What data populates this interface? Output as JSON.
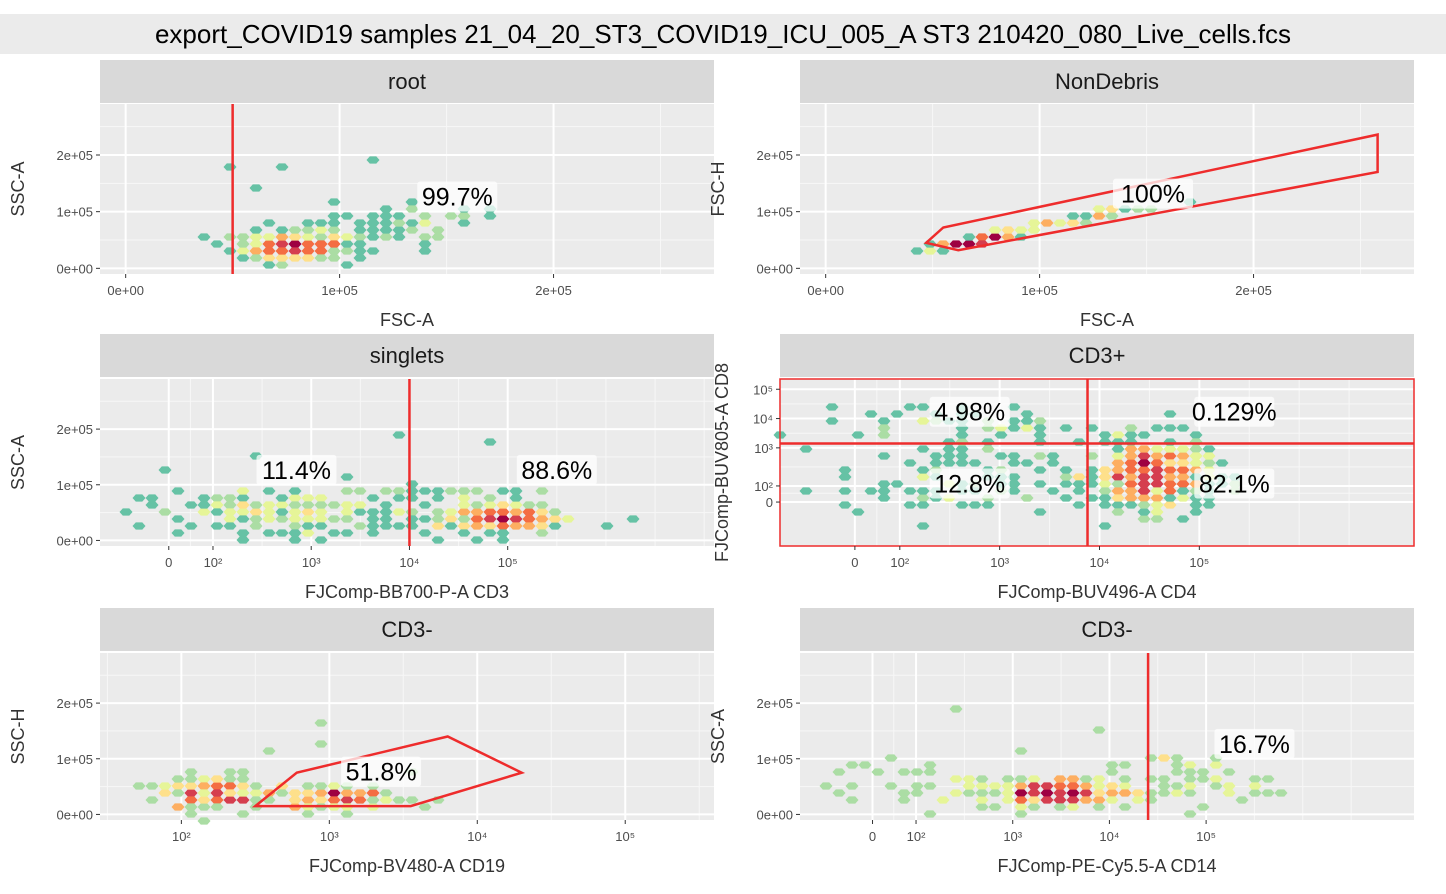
{
  "title": "export_COVID19 samples 21_04_20_ST3_COVID19_ICU_005_A ST3 210420_080_Live_cells.fcs",
  "colors": {
    "panel_bg": "#ebebeb",
    "strip_bg": "#d9d9d9",
    "grid": "#ffffff",
    "gate": "#ee2c2c",
    "palette": [
      "#5e4fa2",
      "#3288bd",
      "#66c2a5",
      "#abdda4",
      "#e6f598",
      "#fee08b",
      "#fdae61",
      "#f46d43",
      "#d53e4f",
      "#9e0142"
    ]
  },
  "chart_data": [
    {
      "type": "heatmap",
      "strip": "root",
      "xlabel": "FSC-A",
      "ylabel": "SSC-A",
      "x_ticks": [
        "0e+00",
        "1e+05",
        "2e+05"
      ],
      "y_ticks": [
        "0e+00",
        "1e+05",
        "2e+05"
      ],
      "gate": {
        "kind": "vertical",
        "x": 50000
      },
      "labels": [
        {
          "text": "99.7%",
          "x": 155000,
          "y": 125000
        }
      ],
      "density": [
        {
          "x": 78000,
          "y": 38000,
          "sx": 12000,
          "sy": 11000,
          "n": 320
        },
        {
          "x": 110000,
          "y": 60000,
          "sx": 30000,
          "sy": 18000,
          "n": 60
        },
        {
          "x": 140000,
          "y": 90000,
          "sx": 18000,
          "sy": 10000,
          "n": 22
        }
      ],
      "points": [
        [
          48000,
          175000
        ],
        [
          75000,
          185000
        ],
        [
          115000,
          195000
        ],
        [
          60000,
          140000
        ]
      ]
    },
    {
      "type": "heatmap",
      "strip": "NonDebris",
      "xlabel": "FSC-A",
      "ylabel": "FSC-H",
      "x_ticks": [
        "0e+00",
        "1e+05",
        "2e+05"
      ],
      "y_ticks": [
        "0e+00",
        "1e+05",
        "2e+05"
      ],
      "gate": {
        "kind": "polygon",
        "pts": [
          [
            47000,
            45000
          ],
          [
            55000,
            72000
          ],
          [
            258000,
            236000
          ],
          [
            258000,
            170000
          ],
          [
            62000,
            32000
          ]
        ]
      },
      "labels": [
        {
          "text": "100%",
          "x": 153000,
          "y": 130000
        }
      ],
      "density": [
        {
          "x": 70000,
          "y": 47000,
          "sx": 9000,
          "sy": 5000,
          "n": 120,
          "rho": 0.97
        },
        {
          "x": 100000,
          "y": 75000,
          "sx": 22000,
          "sy": 14000,
          "n": 60,
          "rho": 0.97
        },
        {
          "x": 130000,
          "y": 100000,
          "sx": 10000,
          "sy": 7000,
          "n": 12,
          "rho": 0.97
        }
      ],
      "points": []
    },
    {
      "type": "heatmap",
      "strip": "singlets",
      "xlabel": "FJComp-BB700-P-A CD3",
      "ylabel": "SSC-A",
      "x_ticks": [
        "0",
        "10²",
        "10³",
        "10⁴",
        "10⁵"
      ],
      "y_ticks": [
        "0e+00",
        "1e+05",
        "2e+05"
      ],
      "gate": {
        "kind": "vertical",
        "x": 2.45
      },
      "labels": [
        {
          "text": "11.4%",
          "x": 1.3,
          "y": 125000
        },
        {
          "text": "88.6%",
          "x": 3.95,
          "y": 125000
        }
      ],
      "density": [
        {
          "x": 3.4,
          "y": 40000,
          "sx": 0.25,
          "sy": 10000,
          "n": 250
        },
        {
          "x": 1.2,
          "y": 50000,
          "sx": 0.7,
          "sy": 20000,
          "n": 180
        },
        {
          "x": 3.2,
          "y": 55000,
          "sx": 0.5,
          "sy": 25000,
          "n": 80
        }
      ],
      "points": [
        [
          0.9,
          155000
        ],
        [
          2.3,
          195000
        ],
        [
          3.3,
          180000
        ],
        [
          4.7,
          40000
        ],
        [
          3.6,
          95000
        ],
        [
          1.8,
          115000
        ],
        [
          0.0,
          125000
        ]
      ]
    },
    {
      "type": "heatmap",
      "strip": "CD3+",
      "xlabel": "FJComp-BUV496-A CD4",
      "ylabel": "FJComp-BUV805-A CD8",
      "x_ticks": [
        "0",
        "10²",
        "10³",
        "10⁴",
        "10⁵"
      ],
      "y_ticks": [
        "0",
        "10²",
        "10³",
        "10⁴",
        "10⁵"
      ],
      "gate": {
        "kind": "quad",
        "x": 2.33,
        "y": 3.0
      },
      "labels": [
        {
          "text": "4.98%",
          "x": 1.15,
          "y": 4.05
        },
        {
          "text": "0.129%",
          "x": 3.8,
          "y": 4.05
        },
        {
          "text": "12.8%",
          "x": 1.15,
          "y": 1.6
        },
        {
          "text": "82.1%",
          "x": 3.8,
          "y": 1.6
        }
      ],
      "density": [
        {
          "x": 2.95,
          "y": 1.9,
          "sx": 0.3,
          "sy": 0.6,
          "n": 420
        },
        {
          "x": 1.0,
          "y": 1.7,
          "sx": 0.6,
          "sy": 0.7,
          "n": 90
        },
        {
          "x": 1.1,
          "y": 3.7,
          "sx": 0.55,
          "sy": 0.3,
          "n": 50
        }
      ],
      "points": [
        [
          3.1,
          3.95
        ],
        [
          2.7,
          3.2
        ],
        [
          3.4,
          3.05
        ]
      ]
    },
    {
      "type": "heatmap",
      "strip": "CD3-",
      "xlabel": "FJComp-BV480-A CD19",
      "ylabel": "SSC-H",
      "x_ticks": [
        "10²",
        "10³",
        "10⁴",
        "10⁵"
      ],
      "y_ticks": [
        "0e+00",
        "1e+05",
        "2e+05"
      ],
      "gate": {
        "kind": "polygon",
        "pts": [
          [
            2.5,
            15000
          ],
          [
            3.55,
            15000
          ],
          [
            4.3,
            75000
          ],
          [
            3.8,
            140000
          ],
          [
            2.78,
            75000
          ]
        ]
      },
      "labels": [
        {
          "text": "51.8%",
          "x": 3.35,
          "y": 75000
        }
      ],
      "density": [
        {
          "x": 2.2,
          "y": 40000,
          "sx": 0.2,
          "sy": 18000,
          "n": 90
        },
        {
          "x": 3.1,
          "y": 30000,
          "sx": 0.2,
          "sy": 10000,
          "n": 80
        },
        {
          "x": 2.6,
          "y": 45000,
          "sx": 0.4,
          "sy": 25000,
          "n": 35
        }
      ],
      "points": [
        [
          2.9,
          160000
        ],
        [
          2.55,
          115000
        ],
        [
          2.9,
          130000
        ],
        [
          2.0,
          15000
        ]
      ]
    },
    {
      "type": "heatmap",
      "strip": "CD3-",
      "xlabel": "FJComp-PE-Cy5.5-A CD14",
      "ylabel": "SSC-A",
      "x_ticks": [
        "0",
        "10²",
        "10³",
        "10⁴",
        "10⁵"
      ],
      "y_ticks": [
        "0e+00",
        "1e+05",
        "2e+05"
      ],
      "gate": {
        "kind": "vertical",
        "x": 2.85
      },
      "labels": [
        {
          "text": "16.7%",
          "x": 3.95,
          "y": 125000
        }
      ],
      "density": [
        {
          "x": 1.9,
          "y": 40000,
          "sx": 0.4,
          "sy": 12000,
          "n": 200
        },
        {
          "x": 3.2,
          "y": 60000,
          "sx": 0.4,
          "sy": 25000,
          "n": 50
        },
        {
          "x": 0.5,
          "y": 55000,
          "sx": 0.5,
          "sy": 20000,
          "n": 30
        }
      ],
      "points": [
        [
          0.8,
          195000
        ],
        [
          3.7,
          80000
        ],
        [
          1.5,
          120000
        ]
      ]
    }
  ]
}
